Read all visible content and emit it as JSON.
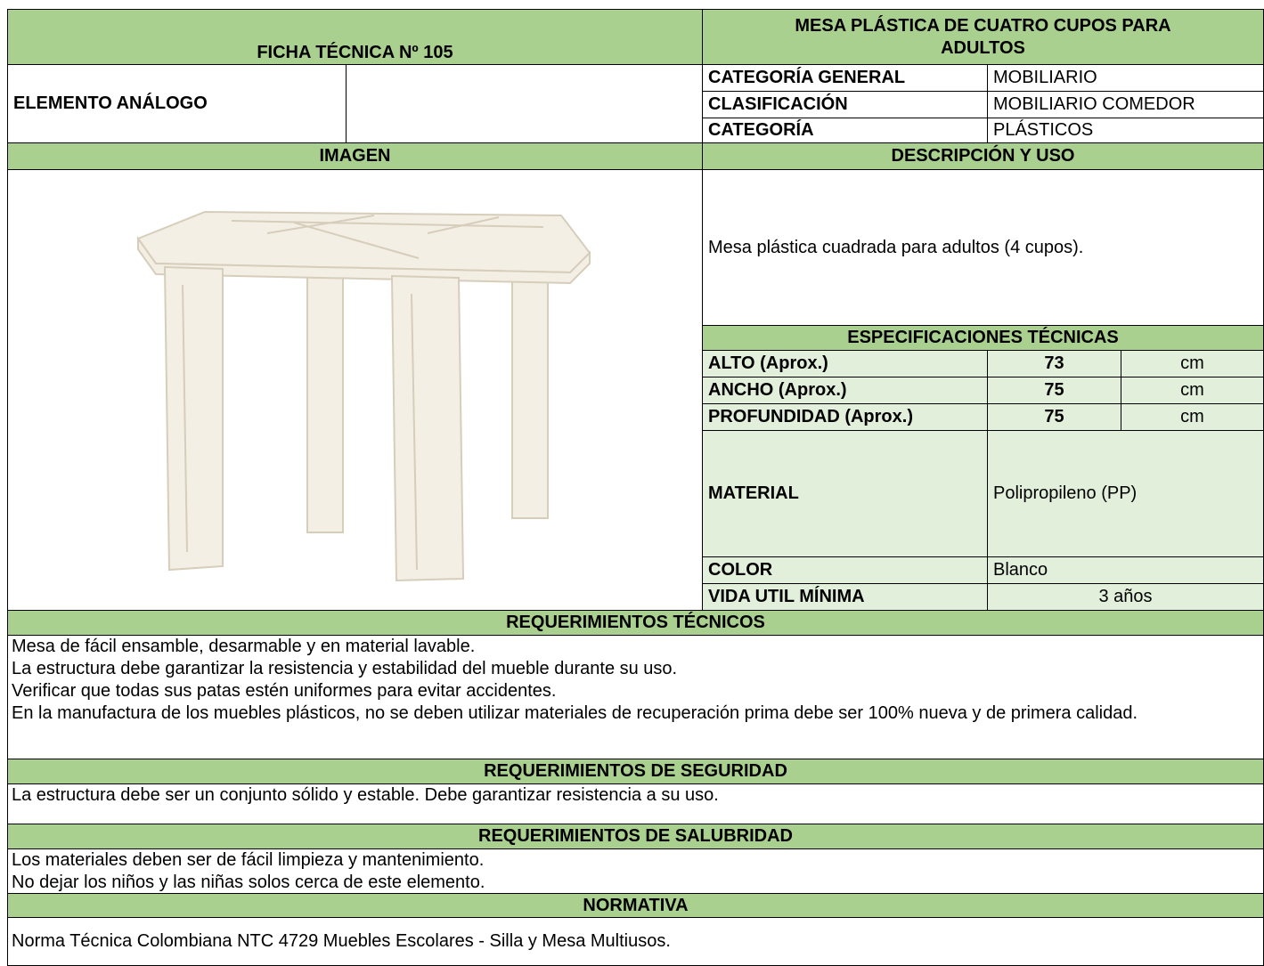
{
  "header": {
    "sheet_title": "FICHA TÉCNICA Nº 105",
    "product_name": "MESA PLÁSTICA DE CUATRO CUPOS PARA ADULTOS"
  },
  "element": {
    "label": "ELEMENTO ANÁLOGO"
  },
  "classification": [
    {
      "label": "CATEGORÍA GENERAL",
      "value": "MOBILIARIO"
    },
    {
      "label": "CLASIFICACIÓN",
      "value": "MOBILIARIO COMEDOR"
    },
    {
      "label": "CATEGORÍA",
      "value": "PLÁSTICOS"
    }
  ],
  "image_heading": "IMAGEN",
  "description": {
    "heading": "DESCRIPCIÓN Y USO",
    "text": "Mesa plástica cuadrada para adultos (4 cupos)."
  },
  "specifications": {
    "heading": "ESPECIFICACIONES TÉCNICAS",
    "dimensions": [
      {
        "label": "ALTO (Aprox.)",
        "value": 73,
        "unit": "cm"
      },
      {
        "label": "ANCHO (Aprox.)",
        "value": 75,
        "unit": "cm"
      },
      {
        "label": "PROFUNDIDAD  (Aprox.)",
        "value": 75,
        "unit": "cm"
      }
    ],
    "material": {
      "label": "MATERIAL",
      "value": "Polipropileno (PP)"
    },
    "color": {
      "label": "COLOR",
      "value": "Blanco"
    },
    "lifespan": {
      "label": "VIDA UTIL MÍNIMA",
      "value": "3 años"
    }
  },
  "technical_requirements": {
    "heading": "REQUERIMIENTOS TÉCNICOS",
    "items": [
      "Mesa de fácil ensamble, desarmable y en material lavable.",
      "La estructura debe garantizar la resistencia y estabilidad del mueble durante su uso.",
      "Verificar que todas sus patas estén uniformes para evitar accidentes.",
      "En la manufactura de los muebles plásticos, no se deben utilizar materiales de recuperación prima debe ser 100% nueva y de primera calidad."
    ]
  },
  "safety_requirements": {
    "heading": "REQUERIMIENTOS DE SEGURIDAD",
    "items": [
      "La estructura debe ser un conjunto sólido y estable. Debe garantizar resistencia a su uso."
    ]
  },
  "sanitation_requirements": {
    "heading": "REQUERIMIENTOS DE SALUBRIDAD",
    "items": [
      "Los materiales deben ser de fácil limpieza y mantenimiento.",
      "No dejar los niños y las niñas solos cerca de este elemento."
    ]
  },
  "regulation": {
    "heading": "NORMATIVA",
    "items": [
      "Norma Técnica Colombiana NTC 4729 Muebles Escolares - Silla y Mesa Multiusos."
    ]
  }
}
